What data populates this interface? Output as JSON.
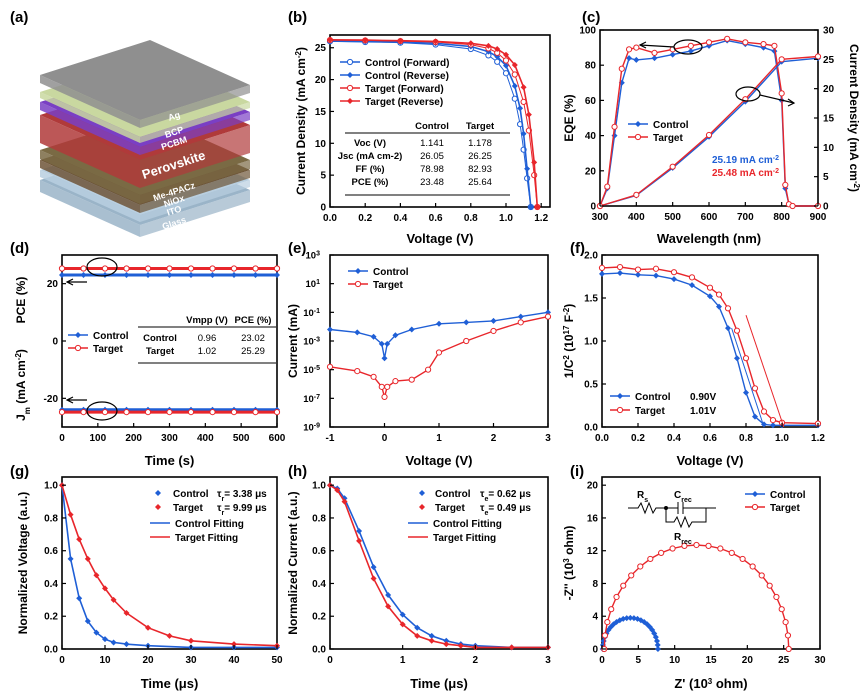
{
  "colors": {
    "control": "#1f5fd6",
    "target": "#e8262b",
    "axis": "#000000"
  },
  "panels": [
    {
      "label": "(a)",
      "type": "diagram",
      "layers": [
        "Ag",
        "BCP",
        "PCBM",
        "Perovskite",
        "Me-4PACz",
        "NiOx",
        "ITO",
        "Glass"
      ]
    },
    {
      "label": "(b)",
      "xlabel": "Voltage (V)",
      "ylabel": "Current Density (mA cm",
      "ylabel_sup": "-2",
      "ylabel_end": ")",
      "xticks": [
        "0.0",
        "0.2",
        "0.4",
        "0.6",
        "0.8",
        "1.0",
        "1.2"
      ],
      "yticks": [
        "0",
        "5",
        "10",
        "15",
        "20",
        "25"
      ],
      "legend": [
        "Control (Forward)",
        "Control (Reverse)",
        "Target (Forward)",
        "Target (Reverse)"
      ],
      "table": {
        "headers": [
          "",
          "Control",
          "Target"
        ],
        "rows": [
          [
            "Voc (V)",
            "1.141",
            "1.178"
          ],
          [
            "Jsc (mA cm-2)",
            "26.05",
            "26.25"
          ],
          [
            "FF (%)",
            "78.98",
            "82.93"
          ],
          [
            "PCE (%)",
            "23.48",
            "25.64"
          ]
        ]
      }
    },
    {
      "label": "(c)",
      "xlabel": "Wavelength (nm)",
      "ylabel": "EQE (%)",
      "y2label": "Current Density (mA cm",
      "y2label_sup": "-2",
      "y2label_end": ")",
      "xticks": [
        "300",
        "400",
        "500",
        "600",
        "700",
        "800",
        "900"
      ],
      "yticks": [
        "0",
        "20",
        "40",
        "60",
        "80",
        "100"
      ],
      "y2ticks": [
        "0",
        "5",
        "10",
        "15",
        "20",
        "25",
        "30"
      ],
      "legend": [
        "Control",
        "Target"
      ],
      "annotations": [
        "25.19 mA cm",
        "25.48 mA cm"
      ],
      "annotation_sup": "-2"
    },
    {
      "label": "(d)",
      "xlabel": "Time (s)",
      "ylabel_top": "PCE (%)",
      "ylabel_bottom": "J",
      "ylabel_bottom_sub": "m",
      "ylabel_bottom_end": " (mA cm",
      "ylabel_bottom_sup": "-2",
      "ylabel_bottom_close": ")",
      "xticks": [
        "0",
        "100",
        "200",
        "300",
        "400",
        "500",
        "600"
      ],
      "yticks": [
        "-20",
        "0",
        "20"
      ],
      "legend": [
        "Control",
        "Target"
      ],
      "table": {
        "headers": [
          "",
          "Vmpp (V)",
          "PCE (%)"
        ],
        "rows": [
          [
            "Control",
            "0.96",
            "23.02"
          ],
          [
            "Target",
            "1.02",
            "25.29"
          ]
        ]
      }
    },
    {
      "label": "(e)",
      "xlabel": "Voltage (V)",
      "ylabel": "Current (mA)",
      "xticks": [
        "-1",
        "0",
        "1",
        "2",
        "3"
      ],
      "yticks": [
        "10",
        "10",
        "10",
        "10",
        "10",
        "10",
        "10"
      ],
      "ytick_exps": [
        "-9",
        "-7",
        "-5",
        "-3",
        "-1",
        "1",
        "3"
      ],
      "legend": [
        "Control",
        "Target"
      ]
    },
    {
      "label": "(f)",
      "xlabel": "Voltage (V)",
      "ylabel": "1/C",
      "ylabel_sup": "2",
      "ylabel_end": " (10",
      "ylabel_sup2": "17",
      "ylabel_end2": " F",
      "ylabel_sup3": "-2",
      "ylabel_close": ")",
      "xticks": [
        "0.0",
        "0.2",
        "0.4",
        "0.6",
        "0.8",
        "1.0",
        "1.2"
      ],
      "yticks": [
        "0.0",
        "0.5",
        "1.0",
        "1.5",
        "2.0"
      ],
      "legend": [
        "Control",
        "Target"
      ],
      "legend_values": [
        "0.90V",
        "1.01V"
      ]
    },
    {
      "label": "(g)",
      "xlabel": "Time (μs)",
      "ylabel": "Normalized Voltage (a.u.)",
      "xticks": [
        "0",
        "10",
        "20",
        "30",
        "40",
        "50"
      ],
      "yticks": [
        "0.0",
        "0.2",
        "0.4",
        "0.6",
        "0.8",
        "1.0"
      ],
      "legend": [
        "Control",
        "Target",
        "Control Fitting",
        "Target Fitting"
      ],
      "tau_symbol": "τ",
      "tau_sub": "r",
      "tau_values": [
        "= 3.38 μs",
        "= 9.99 μs"
      ]
    },
    {
      "label": "(h)",
      "xlabel": "Time (μs)",
      "ylabel": "Normalized Current (a.u.)",
      "xticks": [
        "0",
        "1",
        "2",
        "3"
      ],
      "yticks": [
        "0.0",
        "0.2",
        "0.4",
        "0.6",
        "0.8",
        "1.0"
      ],
      "legend": [
        "Control",
        "Target",
        "Control Fitting",
        "Target Fitting"
      ],
      "tau_symbol": "τ",
      "tau_sub": "e",
      "tau_values": [
        "= 0.62 μs",
        "= 0.49 μs"
      ]
    },
    {
      "label": "(i)",
      "xlabel": "Z' (10",
      "xlabel_sup": "3",
      "xlabel_end": " ohm)",
      "ylabel": "-Z'' (10",
      "ylabel_sup": "3",
      "ylabel_end": " ohm)",
      "xticks": [
        "0",
        "5",
        "10",
        "15",
        "20",
        "25",
        "30"
      ],
      "yticks": [
        "0",
        "4",
        "8",
        "12",
        "16",
        "20"
      ],
      "legend": [
        "Control",
        "Target"
      ],
      "circuit_labels": [
        "R",
        "s",
        "C",
        "rec",
        "R",
        "rec"
      ]
    }
  ],
  "chart_data": [
    {
      "type": "line",
      "panel": "b",
      "xlim": [
        0,
        1.25
      ],
      "ylim": [
        0,
        27
      ],
      "series": [
        {
          "name": "Control (Forward)",
          "x": [
            0,
            0.2,
            0.4,
            0.6,
            0.8,
            0.9,
            0.95,
            1.0,
            1.05,
            1.08,
            1.1,
            1.12,
            1.141
          ],
          "y": [
            26.0,
            25.9,
            25.8,
            25.5,
            24.8,
            23.8,
            22.8,
            21.0,
            17.0,
            13.0,
            9.0,
            4.5,
            0
          ]
        },
        {
          "name": "Control (Reverse)",
          "x": [
            0,
            0.2,
            0.4,
            0.6,
            0.8,
            0.9,
            0.95,
            1.0,
            1.05,
            1.08,
            1.1,
            1.12,
            1.141
          ],
          "y": [
            26.05,
            26.0,
            25.9,
            25.7,
            25.2,
            24.4,
            23.6,
            22.2,
            19.0,
            15.5,
            11.5,
            6.0,
            0
          ]
        },
        {
          "name": "Target (Forward)",
          "x": [
            0,
            0.2,
            0.4,
            0.6,
            0.8,
            0.9,
            0.95,
            1.0,
            1.05,
            1.1,
            1.13,
            1.16,
            1.178
          ],
          "y": [
            26.2,
            26.15,
            26.05,
            25.9,
            25.5,
            24.9,
            24.2,
            23.0,
            20.8,
            16.5,
            12.0,
            5.0,
            0
          ]
        },
        {
          "name": "Target (Reverse)",
          "x": [
            0,
            0.2,
            0.4,
            0.6,
            0.8,
            0.9,
            0.95,
            1.0,
            1.05,
            1.1,
            1.13,
            1.16,
            1.178
          ],
          "y": [
            26.25,
            26.2,
            26.1,
            26.0,
            25.7,
            25.3,
            24.8,
            23.9,
            22.3,
            18.8,
            14.5,
            7.0,
            0
          ]
        }
      ]
    },
    {
      "type": "line",
      "panel": "c",
      "xlim": [
        300,
        900
      ],
      "ylim": [
        0,
        100
      ],
      "y2lim": [
        0,
        30
      ],
      "series": [
        {
          "name": "Control",
          "x": [
            300,
            320,
            340,
            360,
            380,
            400,
            450,
            500,
            550,
            600,
            650,
            700,
            750,
            780,
            800,
            810,
            820,
            830,
            900
          ],
          "y": [
            0,
            10,
            40,
            70,
            84,
            83,
            84,
            86,
            88,
            91,
            94,
            92,
            90,
            88,
            60,
            10,
            1,
            0,
            0
          ]
        },
        {
          "name": "Target",
          "x": [
            300,
            320,
            340,
            360,
            380,
            400,
            450,
            500,
            550,
            600,
            650,
            700,
            750,
            780,
            800,
            810,
            820,
            830,
            900
          ],
          "y": [
            0,
            11,
            45,
            78,
            89,
            90,
            87,
            89,
            91,
            93,
            95,
            93,
            92,
            91,
            64,
            12,
            1,
            0,
            0
          ]
        },
        {
          "name": "Control",
          "axis": "y2",
          "x": [
            300,
            400,
            500,
            600,
            700,
            800,
            900
          ],
          "y": [
            0,
            1.8,
            6.5,
            11.8,
            17.8,
            24.6,
            25.19
          ]
        },
        {
          "name": "Target",
          "axis": "y2",
          "x": [
            300,
            400,
            500,
            600,
            700,
            800,
            900
          ],
          "y": [
            0,
            1.9,
            6.7,
            12.1,
            18.2,
            25.0,
            25.48
          ]
        }
      ]
    },
    {
      "type": "line",
      "panel": "d",
      "xlim": [
        0,
        600
      ],
      "ylim": [
        -30,
        30
      ],
      "series": [
        {
          "name": "Control",
          "role": "PCE",
          "x": [
            0,
            600
          ],
          "y": [
            23.02,
            23.02
          ]
        },
        {
          "name": "Target",
          "role": "PCE",
          "x": [
            0,
            600
          ],
          "y": [
            25.29,
            25.29
          ]
        },
        {
          "name": "Control",
          "role": "Jm",
          "x": [
            0,
            600
          ],
          "y": [
            -24.0,
            -24.0
          ]
        },
        {
          "name": "Target",
          "role": "Jm",
          "x": [
            0,
            600
          ],
          "y": [
            -24.8,
            -24.8
          ]
        }
      ]
    },
    {
      "type": "line",
      "panel": "e",
      "xlim": [
        -1,
        3
      ],
      "ylim": [
        -9,
        3
      ],
      "yscale": "log",
      "series": [
        {
          "name": "Control",
          "x": [
            -1,
            -0.5,
            -0.2,
            -0.05,
            0,
            0.05,
            0.2,
            0.5,
            1.0,
            1.5,
            2.0,
            2.5,
            3.0
          ],
          "y": [
            -2.2,
            -2.4,
            -2.7,
            -3.2,
            -4.2,
            -3.2,
            -2.6,
            -2.2,
            -1.8,
            -1.7,
            -1.6,
            -1.3,
            -1.0
          ]
        },
        {
          "name": "Target",
          "x": [
            -1,
            -0.5,
            -0.2,
            -0.05,
            0,
            0.05,
            0.2,
            0.5,
            0.8,
            1.0,
            1.5,
            2.0,
            2.5,
            3.0
          ],
          "y": [
            -4.8,
            -5.1,
            -5.5,
            -6.2,
            -6.9,
            -6.2,
            -5.8,
            -5.7,
            -5.0,
            -3.8,
            -3.0,
            -2.3,
            -1.7,
            -1.3
          ]
        }
      ]
    },
    {
      "type": "line",
      "panel": "f",
      "xlim": [
        0,
        1.2
      ],
      "ylim": [
        0,
        2.0
      ],
      "series": [
        {
          "name": "Control",
          "x": [
            0,
            0.1,
            0.2,
            0.3,
            0.4,
            0.5,
            0.6,
            0.65,
            0.7,
            0.75,
            0.8,
            0.85,
            0.9,
            0.95,
            1.0,
            1.2
          ],
          "y": [
            1.78,
            1.79,
            1.77,
            1.76,
            1.72,
            1.65,
            1.52,
            1.4,
            1.15,
            0.8,
            0.4,
            0.12,
            0.03,
            0.02,
            0.02,
            0.02
          ]
        },
        {
          "name": "Target",
          "x": [
            0,
            0.1,
            0.2,
            0.3,
            0.4,
            0.5,
            0.6,
            0.65,
            0.7,
            0.75,
            0.8,
            0.85,
            0.9,
            0.95,
            1.0,
            1.2
          ],
          "y": [
            1.85,
            1.86,
            1.83,
            1.84,
            1.8,
            1.74,
            1.62,
            1.54,
            1.38,
            1.12,
            0.8,
            0.45,
            0.18,
            0.08,
            0.05,
            0.04
          ]
        }
      ]
    },
    {
      "type": "line",
      "panel": "g",
      "xlim": [
        0,
        50
      ],
      "ylim": [
        0,
        1.05
      ],
      "series": [
        {
          "name": "Control",
          "x": [
            0,
            2,
            4,
            6,
            8,
            10,
            12,
            15,
            20,
            30,
            40,
            50
          ],
          "y": [
            1.0,
            0.55,
            0.31,
            0.17,
            0.1,
            0.06,
            0.04,
            0.03,
            0.02,
            0.01,
            0.01,
            0.01
          ]
        },
        {
          "name": "Target",
          "x": [
            0,
            2,
            4,
            6,
            8,
            10,
            12,
            15,
            20,
            25,
            30,
            40,
            50
          ],
          "y": [
            1.0,
            0.82,
            0.67,
            0.55,
            0.45,
            0.37,
            0.3,
            0.22,
            0.13,
            0.08,
            0.05,
            0.03,
            0.02
          ]
        }
      ]
    },
    {
      "type": "line",
      "panel": "h",
      "xlim": [
        0,
        3
      ],
      "ylim": [
        0,
        1.05
      ],
      "series": [
        {
          "name": "Control",
          "x": [
            0,
            0.1,
            0.2,
            0.4,
            0.6,
            0.8,
            1.0,
            1.2,
            1.4,
            1.6,
            1.8,
            2.0,
            2.5,
            3.0
          ],
          "y": [
            1.0,
            0.98,
            0.92,
            0.72,
            0.5,
            0.33,
            0.21,
            0.13,
            0.08,
            0.05,
            0.03,
            0.02,
            0.01,
            0.01
          ]
        },
        {
          "name": "Target",
          "x": [
            0,
            0.1,
            0.2,
            0.4,
            0.6,
            0.8,
            1.0,
            1.2,
            1.4,
            1.6,
            1.8,
            2.0,
            2.5,
            3.0
          ],
          "y": [
            1.0,
            0.97,
            0.9,
            0.66,
            0.43,
            0.26,
            0.15,
            0.08,
            0.05,
            0.03,
            0.02,
            0.01,
            0.01,
            0.01
          ]
        }
      ]
    },
    {
      "type": "scatter",
      "panel": "i",
      "xlim": [
        0,
        30
      ],
      "ylim": [
        0,
        21
      ],
      "series": [
        {
          "name": "Control",
          "center": [
            3.9,
            0
          ],
          "radius": 3.8
        },
        {
          "name": "Target",
          "center": [
            13.0,
            0
          ],
          "radius": 12.7
        }
      ]
    }
  ]
}
